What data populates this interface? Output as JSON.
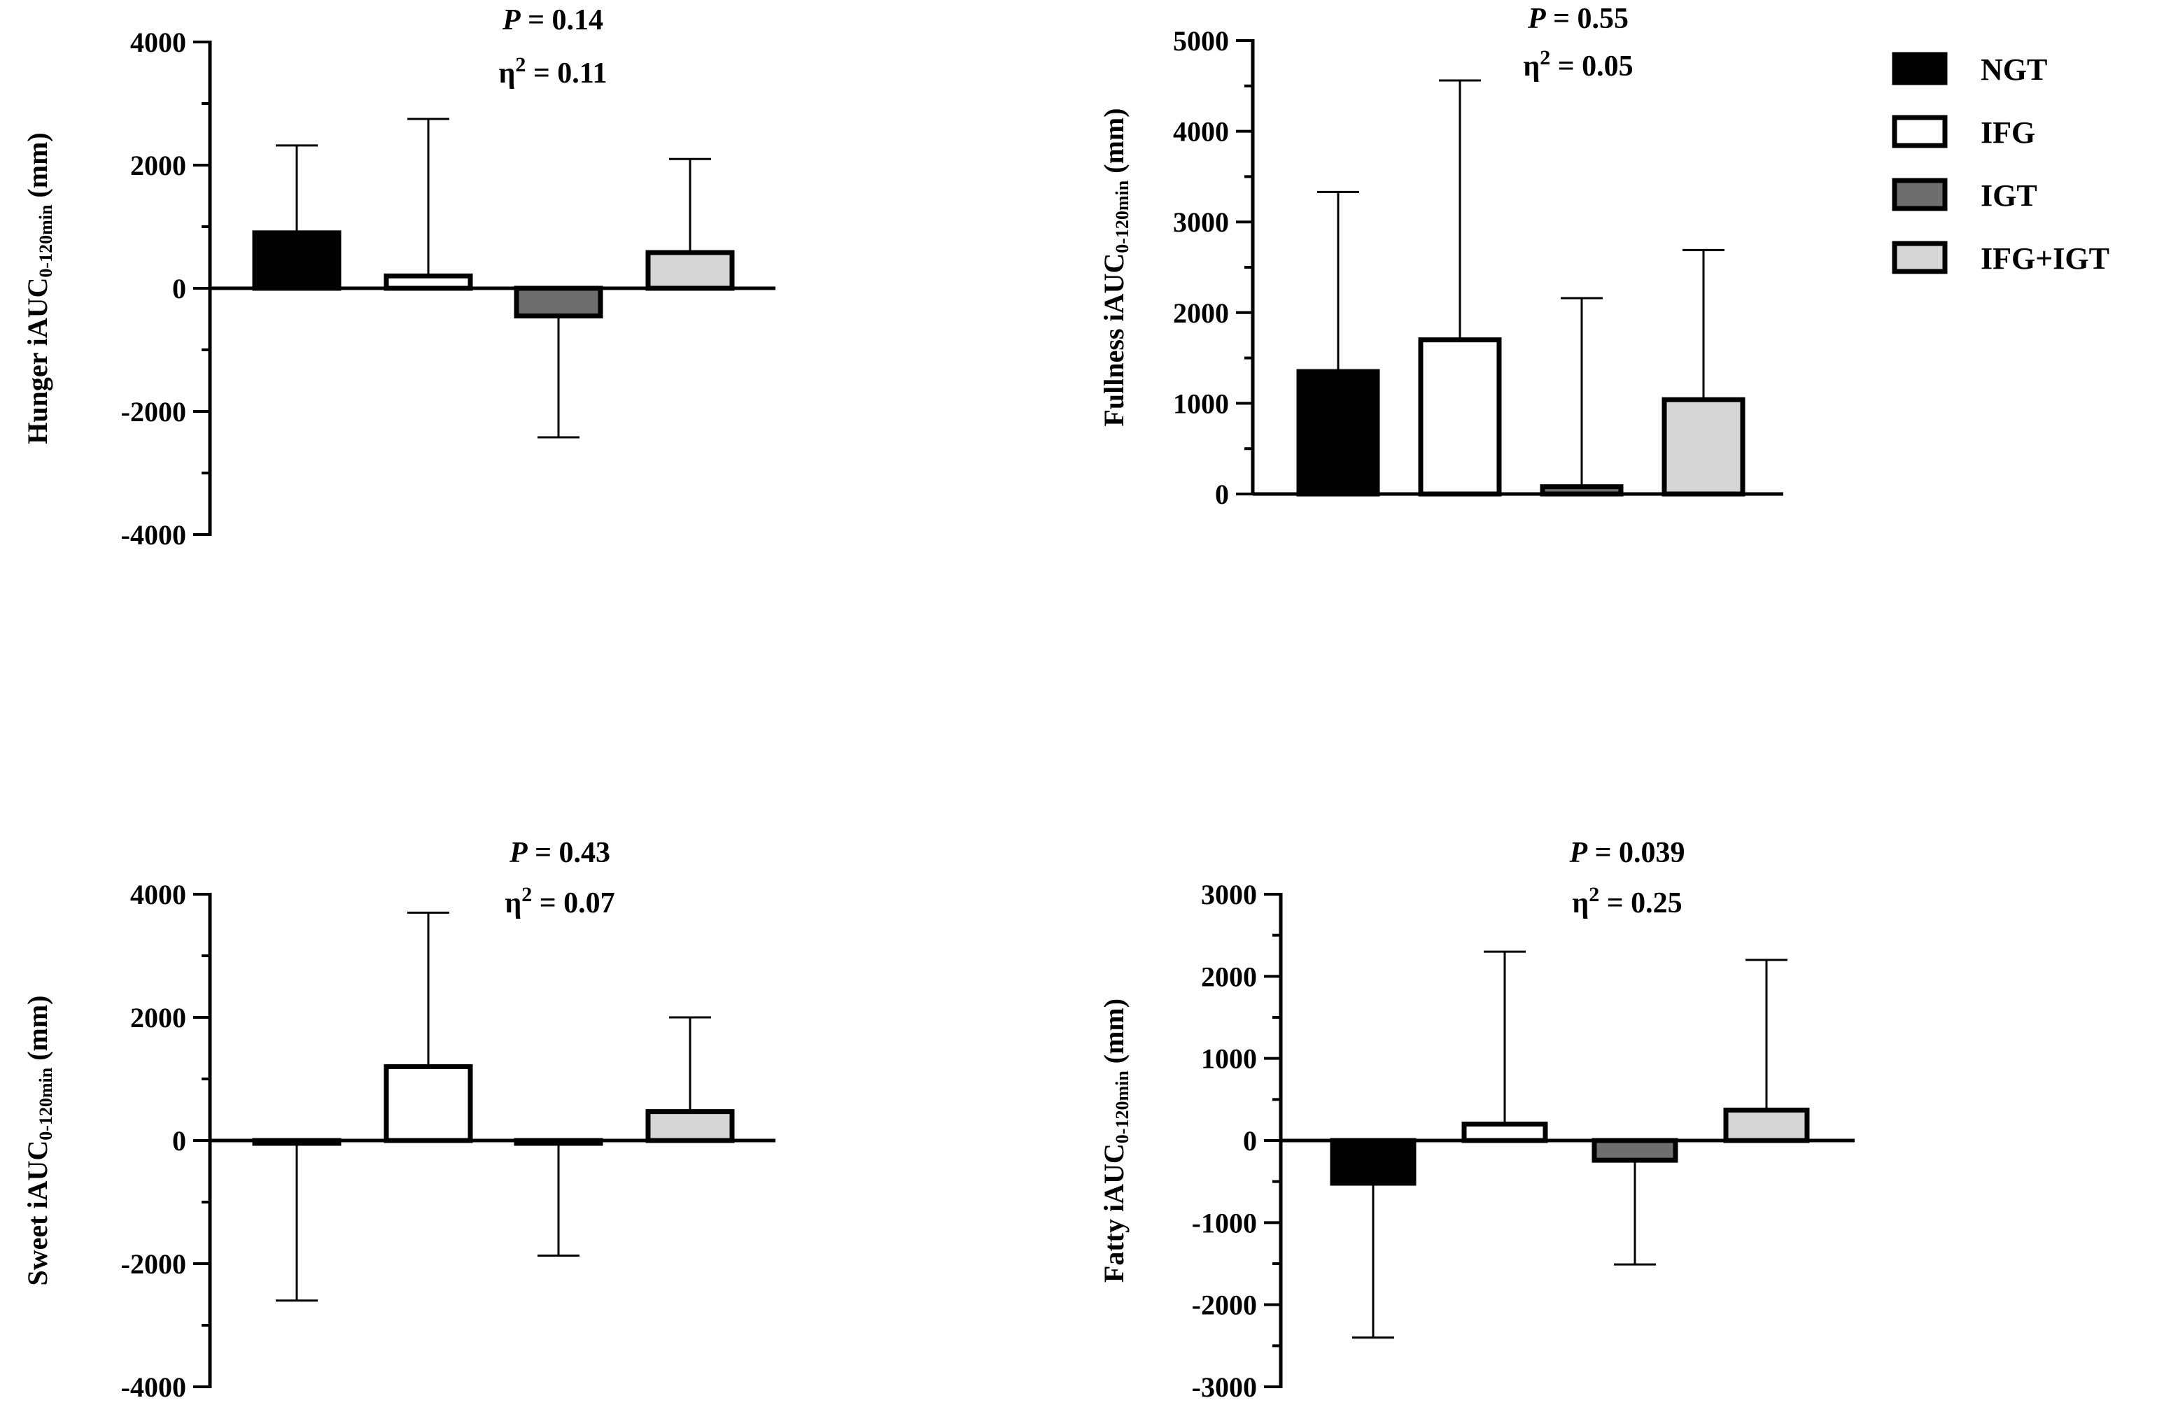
{
  "groups": [
    "NGT",
    "IFG",
    "IGT",
    "IFG+IGT"
  ],
  "colors": {
    "NGT": "#000000",
    "IFG": "#ffffff",
    "IGT": "#6e6e6e",
    "IFG+IGT": "#d6d6d6",
    "axis": "#000000"
  },
  "legend": [
    {
      "label": "NGT",
      "color": "#000000"
    },
    {
      "label": "IFG",
      "color": "#ffffff"
    },
    {
      "label": "IGT",
      "color": "#6e6e6e"
    },
    {
      "label": "IFG+IGT",
      "color": "#d6d6d6"
    }
  ],
  "chart_data": [
    {
      "id": "hunger",
      "type": "bar",
      "ylabel_main": "Hunger iAUC",
      "ylabel_sub": "0-120min",
      "ylabel_unit": " (mm)",
      "categories": [
        "NGT",
        "IFG",
        "IGT",
        "IFG+IGT"
      ],
      "values": [
        900,
        200,
        -450,
        580
      ],
      "error_plus": [
        1420,
        2550,
        0,
        1520
      ],
      "error_minus": [
        0,
        0,
        1970,
        0
      ],
      "ylim": [
        -4000,
        4000
      ],
      "ticks": [
        4000,
        2000,
        0,
        -2000,
        -4000
      ],
      "tick_labels": [
        "4000",
        "2000",
        "0",
        "-2000",
        "-4000"
      ],
      "minor_step": 1000,
      "stat_p_symbol": "P",
      "stat_p": " = 0.14",
      "stat_eta_symbol": "η",
      "stat_eta_sup": "2",
      "stat_eta": " = 0.11"
    },
    {
      "id": "fullness",
      "type": "bar",
      "ylabel_main": "Fullness iAUC",
      "ylabel_sub": "0-120min",
      "ylabel_unit": " (mm)",
      "categories": [
        "NGT",
        "IFG",
        "IGT",
        "IFG+IGT"
      ],
      "values": [
        1350,
        1700,
        80,
        1040
      ],
      "error_plus": [
        1980,
        2860,
        2080,
        1650
      ],
      "error_minus": [
        0,
        0,
        0,
        0
      ],
      "ylim": [
        0,
        5000
      ],
      "ticks": [
        5000,
        4000,
        3000,
        2000,
        1000,
        0
      ],
      "tick_labels": [
        "5000",
        "4000",
        "3000",
        "2000",
        "1000",
        "0"
      ],
      "minor_step": 500,
      "stat_p_symbol": "P",
      "stat_p": " = 0.55",
      "stat_eta_symbol": "η",
      "stat_eta_sup": "2",
      "stat_eta": " = 0.05"
    },
    {
      "id": "sweet",
      "type": "bar",
      "ylabel_main": "Sweet iAUC",
      "ylabel_sub": "0-120min",
      "ylabel_unit": " (mm)",
      "categories": [
        "NGT",
        "IFG",
        "IGT",
        "IFG+IGT"
      ],
      "values": [
        -30,
        1200,
        0,
        470
      ],
      "error_plus": [
        0,
        2500,
        0,
        1530
      ],
      "error_minus": [
        2570,
        0,
        1870,
        0
      ],
      "ylim": [
        -4000,
        4000
      ],
      "ticks": [
        4000,
        2000,
        0,
        -2000,
        -4000
      ],
      "tick_labels": [
        "4000",
        "2000",
        "0",
        "-2000",
        "-4000"
      ],
      "minor_step": 1000,
      "stat_p_symbol": "P",
      "stat_p": " = 0.43",
      "stat_eta_symbol": "η",
      "stat_eta_sup": "2",
      "stat_eta": " = 0.07"
    },
    {
      "id": "fatty",
      "type": "bar",
      "ylabel_main": "Fatty iAUC",
      "ylabel_sub": "0-120min",
      "ylabel_unit": " (mm)",
      "categories": [
        "NGT",
        "IFG",
        "IGT",
        "IFG+IGT"
      ],
      "values": [
        -520,
        200,
        -240,
        370
      ],
      "error_plus": [
        0,
        2100,
        0,
        1830
      ],
      "error_minus": [
        1880,
        0,
        1270,
        0
      ],
      "ylim": [
        -3000,
        3000
      ],
      "ticks": [
        3000,
        2000,
        1000,
        0,
        -1000,
        -2000,
        -3000
      ],
      "tick_labels": [
        "3000",
        "2000",
        "1000",
        "0",
        "-1000",
        "-2000",
        "-3000"
      ],
      "minor_step": 500,
      "stat_p_symbol": "P",
      "stat_p": " = 0.039",
      "stat_eta_symbol": "η",
      "stat_eta_sup": "2",
      "stat_eta": " = 0.25"
    }
  ]
}
